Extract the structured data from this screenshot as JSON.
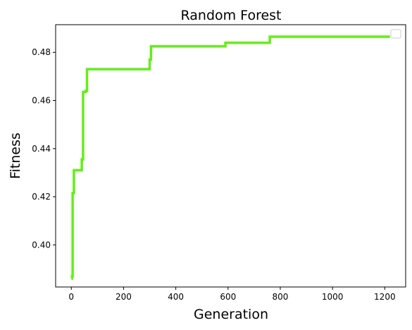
{
  "chart_data": {
    "type": "line",
    "title": "Random Forest",
    "xlabel": "Generation",
    "ylabel": "Fitness",
    "xlim": [
      -60,
      1280
    ],
    "ylim": [
      0.3825,
      0.4915
    ],
    "xticks": [
      0,
      200,
      400,
      600,
      800,
      1000,
      1200
    ],
    "yticks": [
      0.4,
      0.42,
      0.44,
      0.46,
      0.48
    ],
    "xtick_labels": [
      "0",
      "200",
      "400",
      "600",
      "800",
      "1000",
      "1200"
    ],
    "ytick_labels": [
      "0.40",
      "0.42",
      "0.44",
      "0.46",
      "0.48"
    ],
    "grid": false,
    "legend": "top-right",
    "series": [
      {
        "color": "#64ee1a",
        "step": true,
        "x": [
          0,
          3,
          5,
          10,
          40,
          45,
          55,
          60,
          300,
          305,
          590,
          760,
          1220
        ],
        "y": [
          0.386,
          0.387,
          0.4215,
          0.431,
          0.4355,
          0.4635,
          0.464,
          0.473,
          0.477,
          0.4825,
          0.484,
          0.4865,
          0.4865
        ]
      }
    ]
  }
}
